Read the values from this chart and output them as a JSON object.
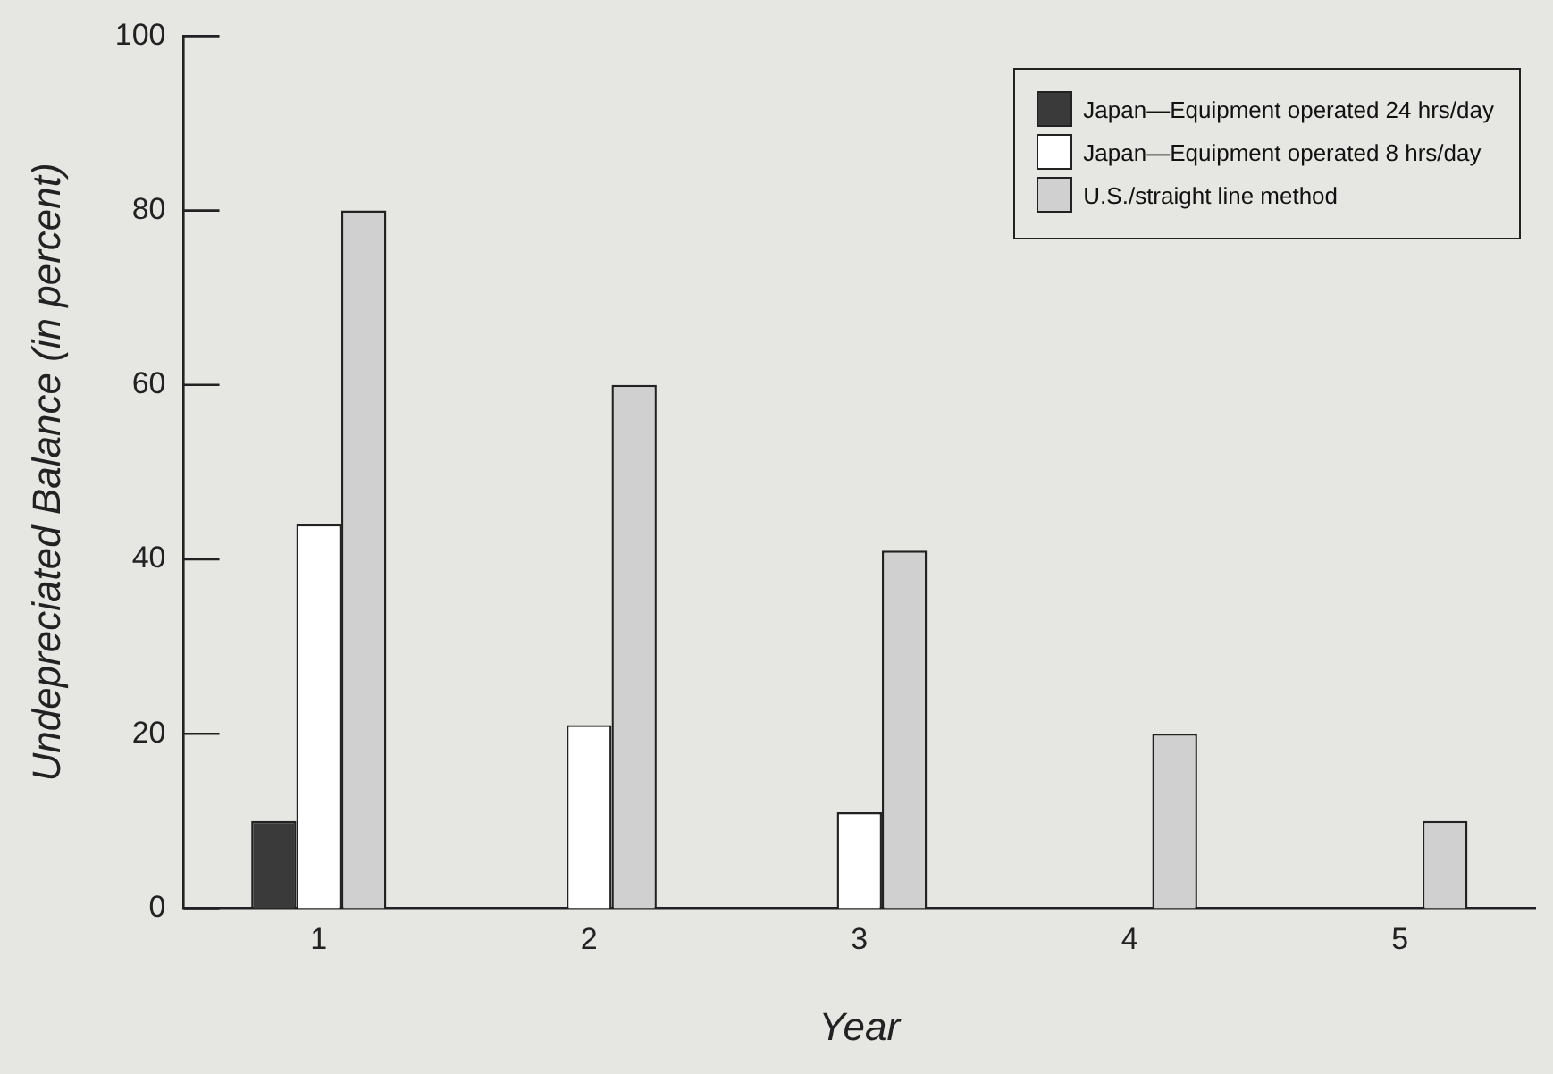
{
  "chart_data": {
    "type": "bar",
    "xlabel": "Year",
    "ylabel": "Undepreciated Balance (in percent)",
    "categories": [
      "1",
      "2",
      "3",
      "4",
      "5"
    ],
    "series": [
      {
        "name": "Japan—Equipment operated 24 hrs/day",
        "color": "#3a3a3a",
        "values": [
          10,
          null,
          null,
          null,
          null
        ]
      },
      {
        "name": "Japan—Equipment operated 8 hrs/day",
        "color": "#ffffff",
        "values": [
          44,
          21,
          11,
          null,
          null
        ]
      },
      {
        "name": "U.S./straight line method",
        "color": "#d0d0d0",
        "values": [
          80,
          60,
          41,
          20,
          10
        ]
      }
    ],
    "ylim": [
      0,
      100
    ],
    "yticks": [
      0,
      20,
      40,
      60,
      80,
      100
    ],
    "grid": false,
    "legend": "top right"
  }
}
